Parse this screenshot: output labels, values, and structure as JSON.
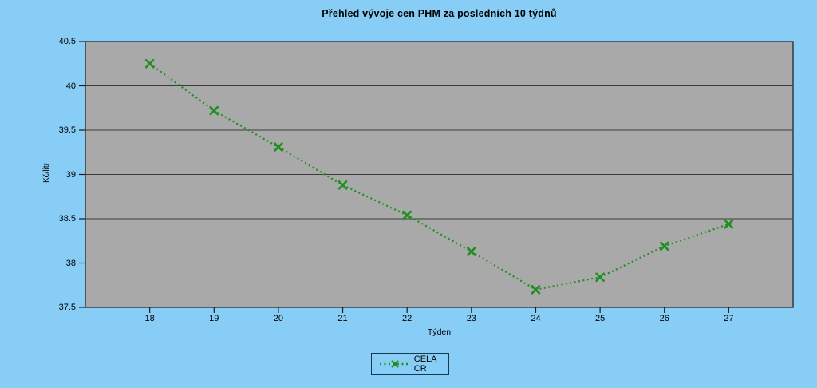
{
  "title": "Přehled vývoje cen PHM za posledních 10 týdnů",
  "colors": {
    "background": "#87cdf5",
    "plot_background": "#a9a9a9",
    "series_green": "#1f8f1f",
    "axis_line": "#1a1a1a",
    "gridline": "#3a3a3a",
    "text": "#000000"
  },
  "chart_data": {
    "type": "line",
    "title": "Přehled vývoje cen PHM za posledních 10 týdnů",
    "xlabel": "Týden",
    "ylabel": "Kč/litr",
    "categories": [
      18,
      19,
      20,
      21,
      22,
      23,
      24,
      25,
      26,
      27
    ],
    "series": [
      {
        "name": "CELA CR",
        "values": [
          40.25,
          39.72,
          39.31,
          38.88,
          38.54,
          38.13,
          37.7,
          37.84,
          38.19,
          38.44
        ]
      }
    ],
    "ylim": [
      37.5,
      40.5
    ],
    "ytick_step": 0.5,
    "xlim": [
      17,
      28
    ],
    "grid": true,
    "line_style": "dotted",
    "marker": "x",
    "legend_position": "bottom-center",
    "legend_entries": [
      "CELA CR"
    ]
  }
}
